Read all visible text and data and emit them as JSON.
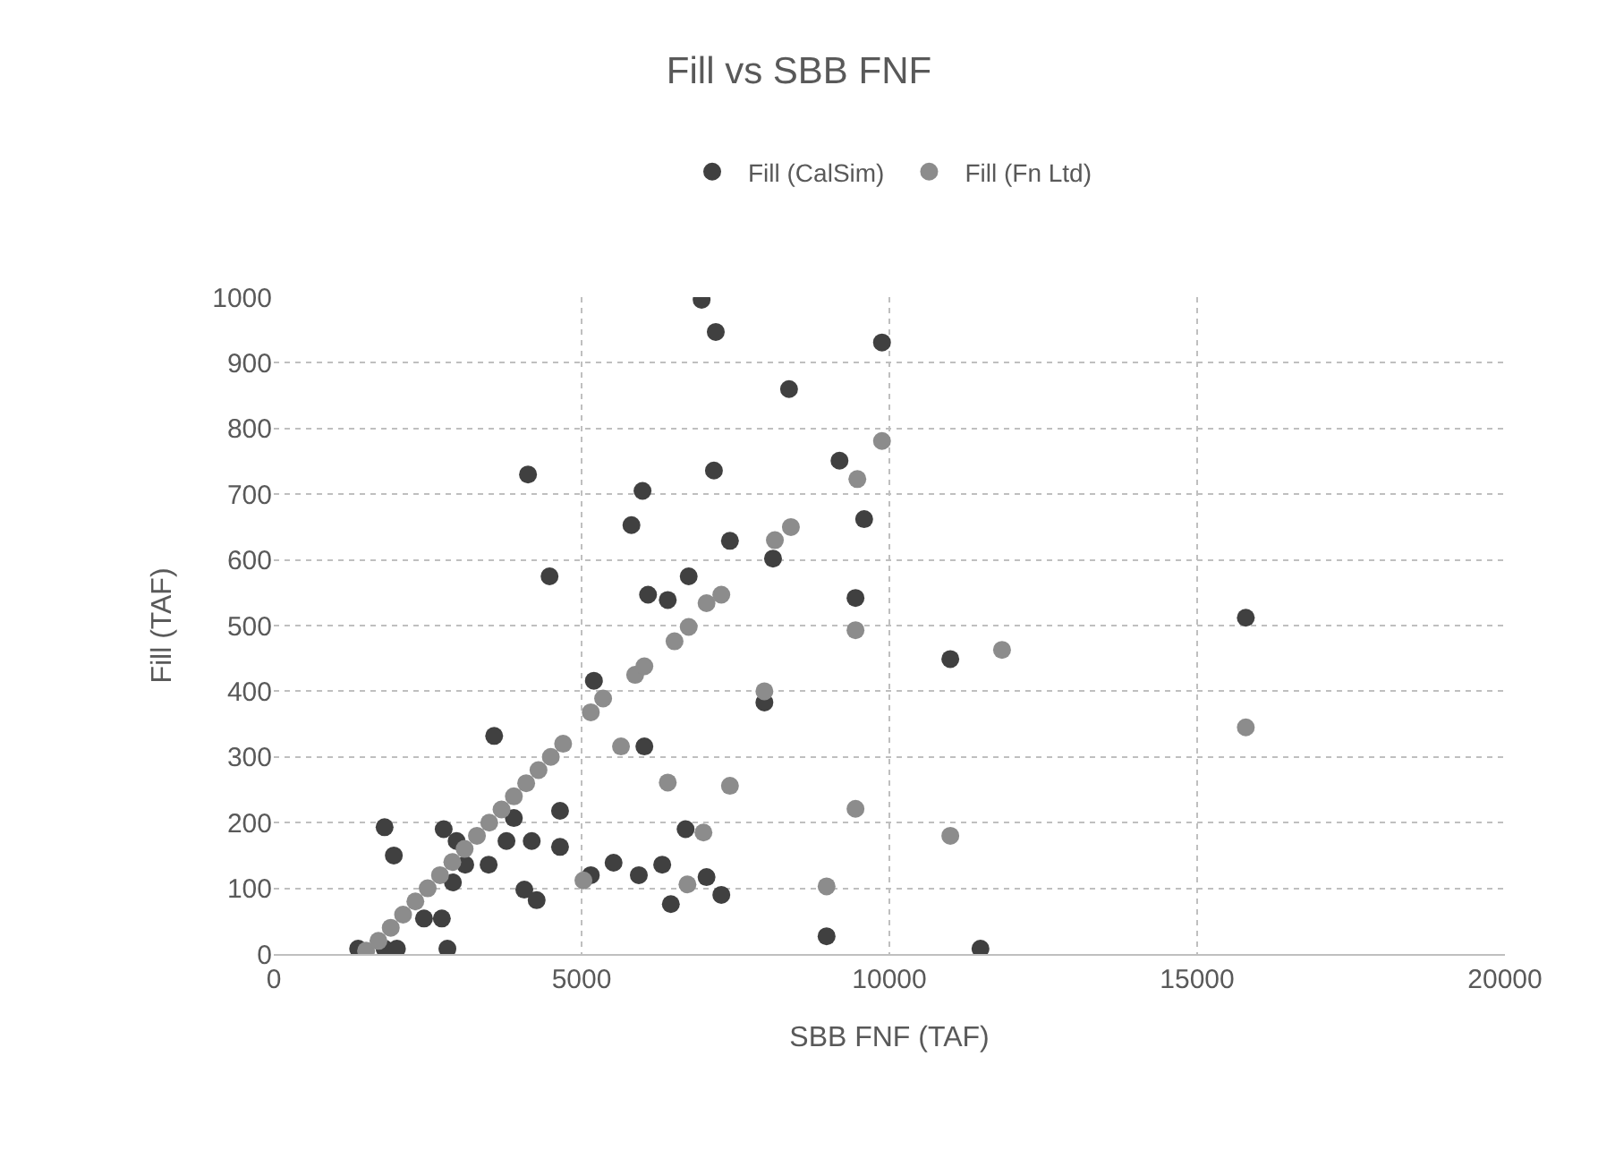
{
  "chart_data": {
    "type": "scatter",
    "title": "Fill vs SBB FNF",
    "xlabel": "SBB FNF (TAF)",
    "ylabel": "Fill (TAF)",
    "marker": "circle",
    "grid": true,
    "legend": "top",
    "xlim": [
      0,
      20000
    ],
    "xticks": [
      0,
      5000,
      10000,
      15000,
      20000
    ],
    "ylim": [
      0,
      1000
    ],
    "yticks": [
      0,
      100,
      200,
      300,
      400,
      500,
      600,
      700,
      800,
      900,
      1000
    ],
    "series": [
      {
        "name": "Fill (CalSim)",
        "color": "#404040",
        "x": [
          6950,
          7180,
          9880,
          8370,
          7150,
          4130,
          5990,
          5810,
          7410,
          9190,
          9590,
          6740,
          4480,
          9450,
          10990,
          15790,
          8980,
          11480,
          3580,
          1800,
          1950,
          4650,
          4650,
          4270,
          2760,
          6690,
          5150,
          5520,
          5930,
          6310,
          6450,
          7030,
          7270,
          6080,
          6400,
          8110,
          7970,
          6020,
          5200,
          1370,
          2240,
          2530,
          2730,
          2440,
          1800,
          2000,
          2820,
          2910,
          3110,
          2970,
          3900,
          3780,
          3490,
          4070,
          4190
        ],
        "values": [
          996,
          947,
          931,
          860,
          736,
          730,
          705,
          653,
          629,
          751,
          662,
          575,
          575,
          542,
          449,
          512,
          27,
          8,
          332,
          193,
          150,
          218,
          163,
          82,
          190,
          190,
          120,
          139,
          120,
          136,
          76,
          117,
          90,
          547,
          539,
          602,
          383,
          316,
          416,
          8,
          null,
          null,
          54,
          54,
          8,
          8,
          8,
          109,
          136,
          172,
          207,
          172,
          136,
          98,
          172
        ]
      },
      {
        "name": "Fill (Fn Ltd)",
        "color": "#8c8c8c",
        "x": [
          9480,
          9880,
          9450,
          11830,
          15790,
          6400,
          7410,
          9450,
          10990,
          8980,
          5030,
          6720,
          6980,
          5350,
          5150,
          5870,
          6020,
          6510,
          6740,
          7030,
          7270,
          8140,
          8400,
          7970,
          5640,
          1500,
          1700,
          1900,
          2100,
          2300,
          2500,
          2700,
          2900,
          3100,
          3300,
          3500,
          3700,
          3900,
          4100,
          4300,
          4500,
          4700
        ],
        "values": [
          723,
          781,
          493,
          463,
          345,
          261,
          256,
          221,
          180,
          103,
          112,
          106,
          185,
          389,
          368,
          425,
          438,
          476,
          498,
          534,
          547,
          630,
          650,
          400,
          316,
          5,
          20,
          40,
          60,
          80,
          100,
          120,
          140,
          160,
          180,
          200,
          220,
          240,
          260,
          280,
          300,
          320
        ]
      }
    ]
  }
}
